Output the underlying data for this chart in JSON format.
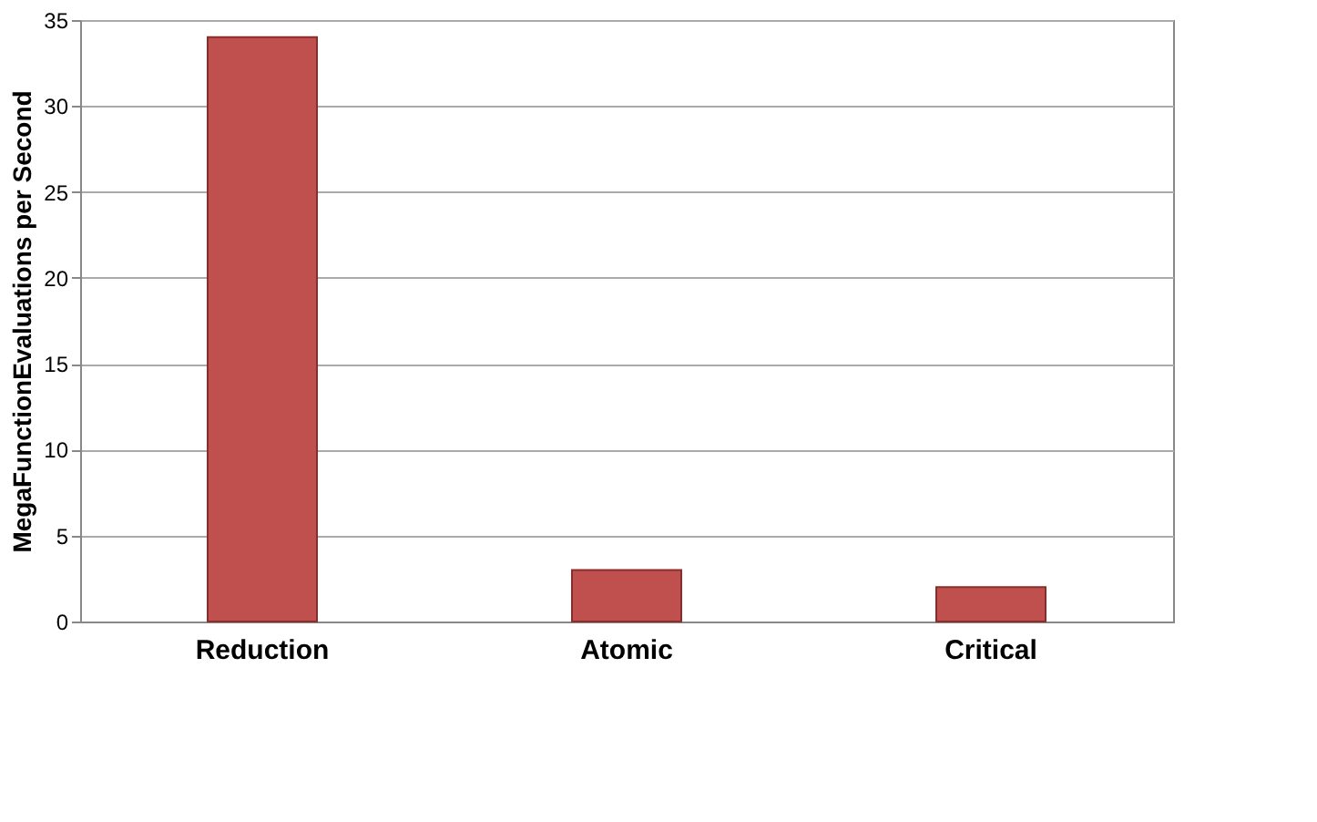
{
  "chart_data": {
    "type": "bar",
    "ylabel": "MegaFunctionEvaluations per Second",
    "categories": [
      "Reduction",
      "Atomic",
      "Critical"
    ],
    "values": [
      34,
      3,
      2
    ],
    "color": "#c0504d",
    "ylim": [
      0,
      35
    ],
    "yticks": [
      0,
      5,
      10,
      15,
      20,
      25,
      30,
      35
    ],
    "grid": "y"
  }
}
